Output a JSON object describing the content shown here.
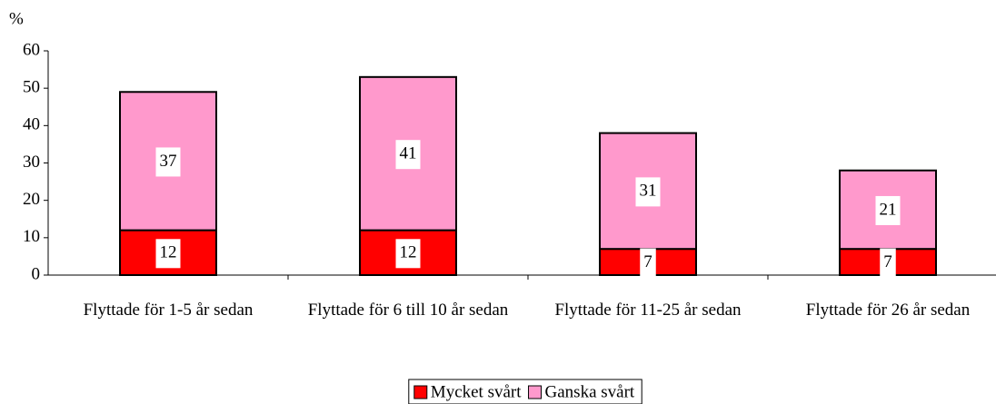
{
  "chart_data": {
    "type": "stacked_bar",
    "y_label": "%",
    "categories": [
      "Flyttade för 1-5 år sedan",
      "Flyttade för 6 till 10 år sedan",
      "Flyttade för 11-25 år sedan",
      "Flyttade för 26 år sedan"
    ],
    "series": [
      {
        "name": "Mycket svårt",
        "color": "#ff0000",
        "values": [
          12,
          12,
          7,
          7
        ]
      },
      {
        "name": "Ganska svårt",
        "color": "#ff99cc",
        "values": [
          37,
          41,
          31,
          21
        ]
      }
    ],
    "ylim": [
      0,
      60
    ],
    "yticks": [
      0,
      10,
      20,
      30,
      40,
      50,
      60
    ],
    "grid": false,
    "legend": "bottom"
  }
}
